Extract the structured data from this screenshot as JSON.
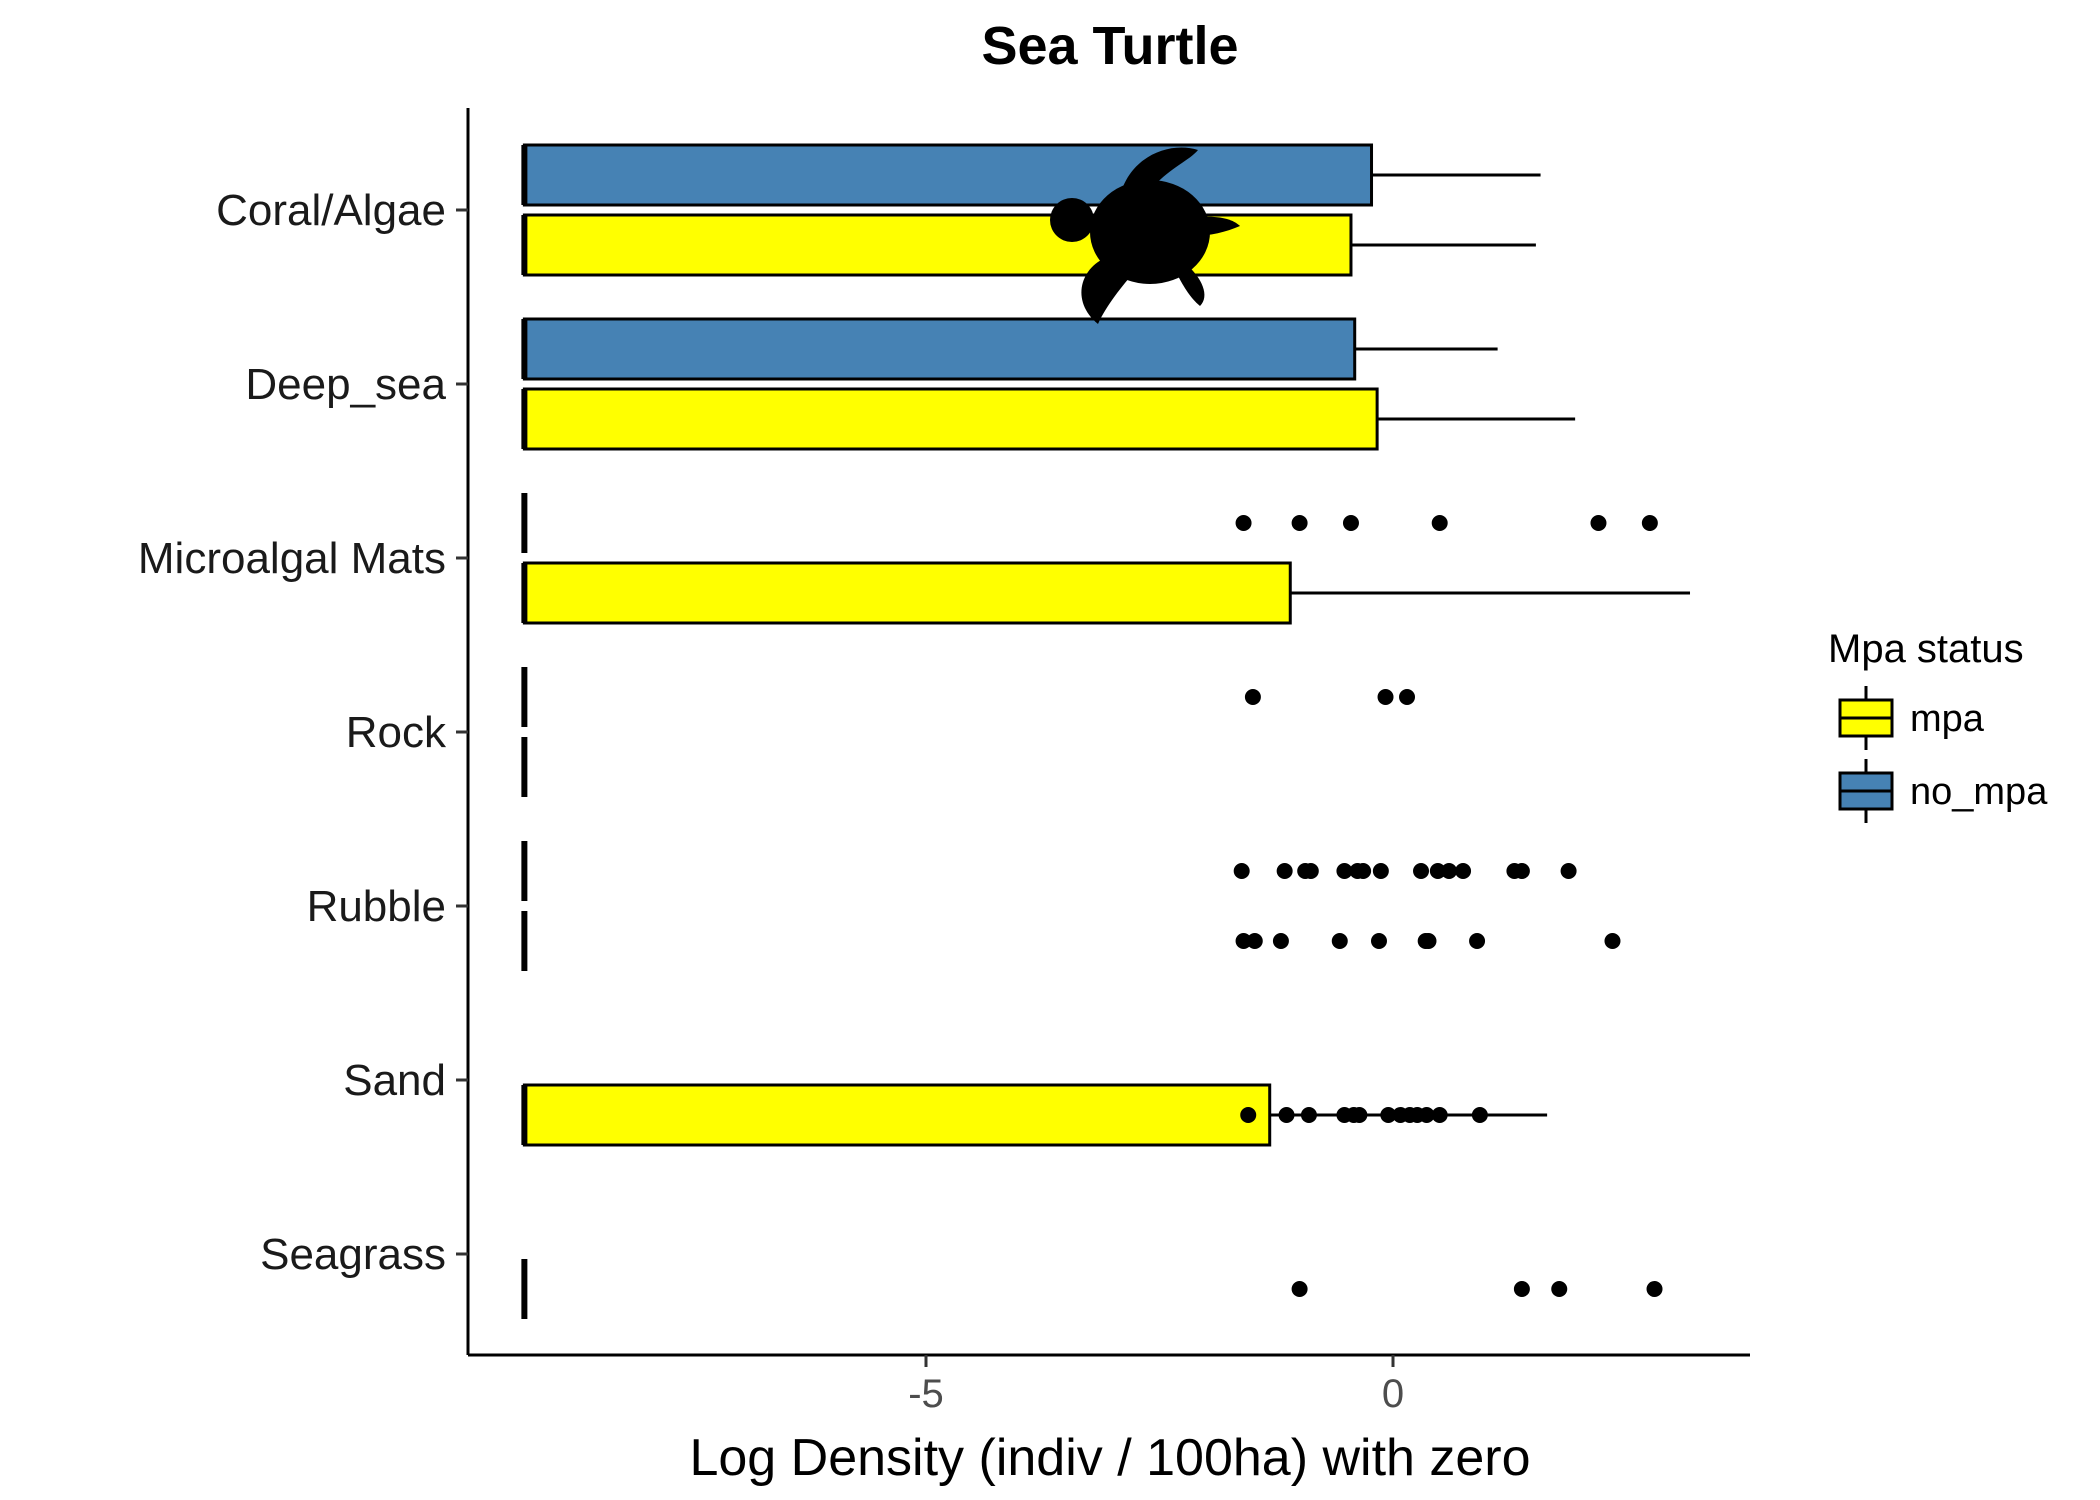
{
  "chart_data": {
    "type": "boxplot",
    "orientation": "horizontal",
    "title": "Sea Turtle",
    "xlabel": "Log Density (indiv / 100ha) with zero",
    "ylabel": "",
    "xlim": [
      -9.9,
      3.8
    ],
    "xticks": [
      -5,
      0
    ],
    "xtick_labels": [
      "-5",
      "0"
    ],
    "grid": false,
    "categories": [
      "Coral/Algae",
      "Deep_sea",
      "Microalgal Mats",
      "Rock",
      "Rubble",
      "Sand",
      "Seagrass"
    ],
    "legend": {
      "title": "Mpa status",
      "position": "right",
      "entries": [
        {
          "key": "mpa",
          "label": "mpa",
          "color": "#FFFF00"
        },
        {
          "key": "no_mpa",
          "label": "no_mpa",
          "color": "#4682B4"
        }
      ]
    },
    "series": [
      {
        "name": "no_mpa",
        "color": "#4682B4",
        "boxes": [
          {
            "category": "Coral/Algae",
            "min": -9.3,
            "q1": -9.3,
            "median": -9.3,
            "q3": -0.23,
            "max": 1.58,
            "outliers": []
          },
          {
            "category": "Deep_sea",
            "min": -9.3,
            "q1": -9.3,
            "median": -9.3,
            "q3": -0.41,
            "max": 1.12,
            "outliers": []
          },
          {
            "category": "Microalgal Mats",
            "min": -9.3,
            "q1": -9.3,
            "median": -9.3,
            "q3": -9.3,
            "max": -9.3,
            "outliers": [
              -1.6,
              -1.0,
              -0.45,
              0.5,
              2.2,
              2.75
            ]
          },
          {
            "category": "Rock",
            "min": -9.3,
            "q1": -9.3,
            "median": -9.3,
            "q3": -9.3,
            "max": -9.3,
            "outliers": [
              -1.5,
              -0.08,
              0.15
            ]
          },
          {
            "category": "Rubble",
            "min": -9.3,
            "q1": -9.3,
            "median": -9.3,
            "q3": -9.3,
            "max": -9.3,
            "outliers": [
              -1.62,
              -1.16,
              -0.94,
              -0.88,
              -0.52,
              -0.38,
              -0.32,
              -0.13,
              0.3,
              0.48,
              0.6,
              0.75,
              1.3,
              1.38,
              1.88
            ]
          }
        ]
      },
      {
        "name": "mpa",
        "color": "#FFFF00",
        "boxes": [
          {
            "category": "Coral/Algae",
            "min": -9.3,
            "q1": -9.3,
            "median": -9.3,
            "q3": -0.45,
            "max": 1.53,
            "outliers": []
          },
          {
            "category": "Deep_sea",
            "min": -9.3,
            "q1": -9.3,
            "median": -9.3,
            "q3": -0.17,
            "max": 1.95,
            "outliers": []
          },
          {
            "category": "Microalgal Mats",
            "min": -9.3,
            "q1": -9.3,
            "median": -9.3,
            "q3": -1.1,
            "max": 3.18,
            "outliers": []
          },
          {
            "category": "Rock",
            "min": -9.3,
            "q1": -9.3,
            "median": -9.3,
            "q3": -9.3,
            "max": -9.3,
            "outliers": []
          },
          {
            "category": "Rubble",
            "min": -9.3,
            "q1": -9.3,
            "median": -9.3,
            "q3": -9.3,
            "max": -9.3,
            "outliers": [
              -1.6,
              -1.48,
              -1.2,
              -0.57,
              -0.15,
              0.35,
              0.38,
              0.9,
              2.35
            ]
          },
          {
            "category": "Sand",
            "min": -9.3,
            "q1": -9.3,
            "median": -9.3,
            "q3": -1.32,
            "max": 1.65,
            "outliers": [
              -1.55,
              -1.14,
              -0.9,
              -0.52,
              -0.42,
              -0.36,
              -0.05,
              0.08,
              0.18,
              0.26,
              0.36,
              0.5,
              0.93
            ]
          },
          {
            "category": "Seagrass",
            "min": -9.3,
            "q1": -9.3,
            "median": -9.3,
            "q3": -9.3,
            "max": -9.3,
            "outliers": [
              -1.0,
              1.38,
              1.78,
              2.8
            ]
          }
        ]
      }
    ]
  }
}
